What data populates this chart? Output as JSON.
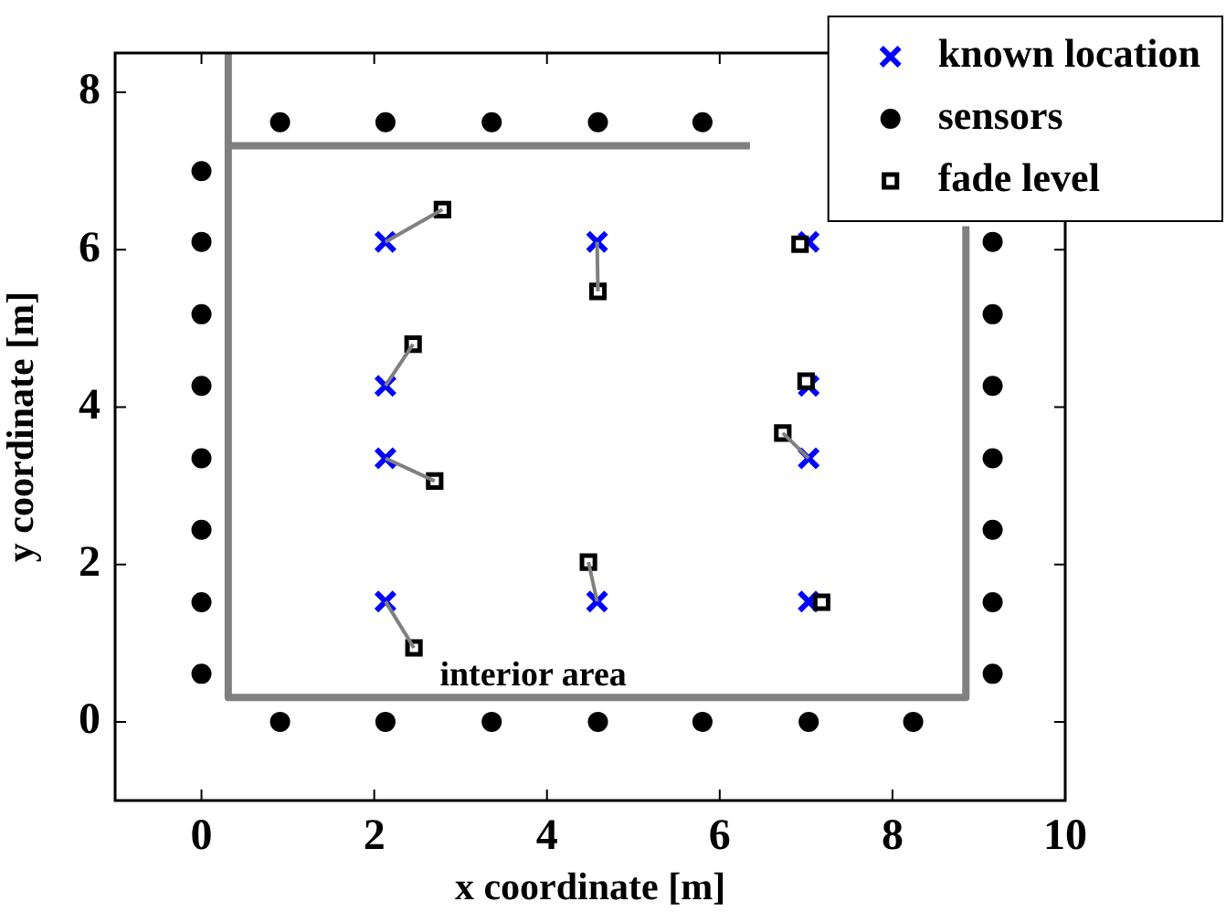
{
  "chart_data": {
    "type": "scatter",
    "xlabel": "x coordinate [m]",
    "ylabel": "y coordinate [m]",
    "xlim": [
      -1,
      10
    ],
    "xticks": [
      0,
      2,
      4,
      6,
      8,
      10
    ],
    "ylim": [
      -1,
      8.5
    ],
    "yticks": [
      0,
      2,
      4,
      6,
      8
    ],
    "grid": false,
    "legend": "top right",
    "annotations": [
      "interior area"
    ],
    "series": [
      {
        "type": "line",
        "marker": "none",
        "color": "#808080",
        "x": [
          0.31,
          0.31,
          8.85,
          8.85
        ],
        "values": [
          8.5,
          0.31,
          0.31,
          6.3
        ]
      },
      {
        "type": "line",
        "marker": "none",
        "color": "#808080",
        "x": [
          0.31,
          6.35
        ],
        "values": [
          7.32,
          7.32
        ]
      },
      {
        "name": "known location",
        "type": "scatter",
        "marker": "cross",
        "color": "#0000ff",
        "x": [
          2.13,
          4.58,
          7.03,
          2.13,
          7.03,
          2.13,
          7.03,
          2.13,
          4.58,
          7.03
        ],
        "values": [
          6.1,
          6.1,
          6.1,
          4.27,
          4.27,
          3.35,
          3.35,
          1.53,
          1.53,
          1.53
        ]
      },
      {
        "name": "sensors",
        "type": "scatter",
        "marker": "circle",
        "color": "#000000",
        "x": [
          0,
          0,
          0,
          0,
          0,
          0,
          0,
          0,
          9.16,
          9.16,
          9.16,
          9.16,
          9.16,
          9.16,
          9.16,
          0.91,
          2.13,
          3.36,
          4.59,
          5.8,
          0.91,
          2.13,
          3.36,
          4.59,
          5.8,
          7.03,
          8.24
        ],
        "values": [
          7.0,
          6.1,
          5.18,
          4.27,
          3.35,
          2.44,
          1.52,
          0.61,
          6.1,
          5.18,
          4.27,
          3.35,
          2.44,
          1.52,
          0.61,
          7.62,
          7.62,
          7.62,
          7.62,
          7.62,
          0,
          0,
          0,
          0,
          0,
          0,
          0
        ]
      },
      {
        "name": "fade level",
        "type": "scatter",
        "marker": "square",
        "color": "#000000",
        "x": [
          2.79,
          4.59,
          6.93,
          2.45,
          7.0,
          2.7,
          6.73,
          2.46,
          4.48,
          7.18
        ],
        "values": [
          6.51,
          5.47,
          6.07,
          4.8,
          4.33,
          3.06,
          3.67,
          0.94,
          2.03,
          1.52
        ]
      },
      {
        "type": "line",
        "marker": "none",
        "color": "#808080",
        "x": [
          2.13,
          2.79
        ],
        "values": [
          6.1,
          6.51
        ]
      },
      {
        "type": "line",
        "marker": "none",
        "color": "#808080",
        "x": [
          4.58,
          4.59
        ],
        "values": [
          6.1,
          5.47
        ]
      },
      {
        "type": "line",
        "marker": "none",
        "color": "#808080",
        "x": [
          2.13,
          2.45
        ],
        "values": [
          4.27,
          4.8
        ]
      },
      {
        "type": "line",
        "marker": "none",
        "color": "#808080",
        "x": [
          2.13,
          2.7
        ],
        "values": [
          3.35,
          3.06
        ]
      },
      {
        "type": "line",
        "marker": "none",
        "color": "#808080",
        "x": [
          7.03,
          6.73
        ],
        "values": [
          3.35,
          3.67
        ]
      },
      {
        "type": "line",
        "marker": "none",
        "color": "#808080",
        "x": [
          2.13,
          2.46
        ],
        "values": [
          1.53,
          0.94
        ]
      },
      {
        "type": "line",
        "marker": "none",
        "color": "#808080",
        "x": [
          4.58,
          4.48
        ],
        "values": [
          1.53,
          2.03
        ]
      }
    ]
  }
}
